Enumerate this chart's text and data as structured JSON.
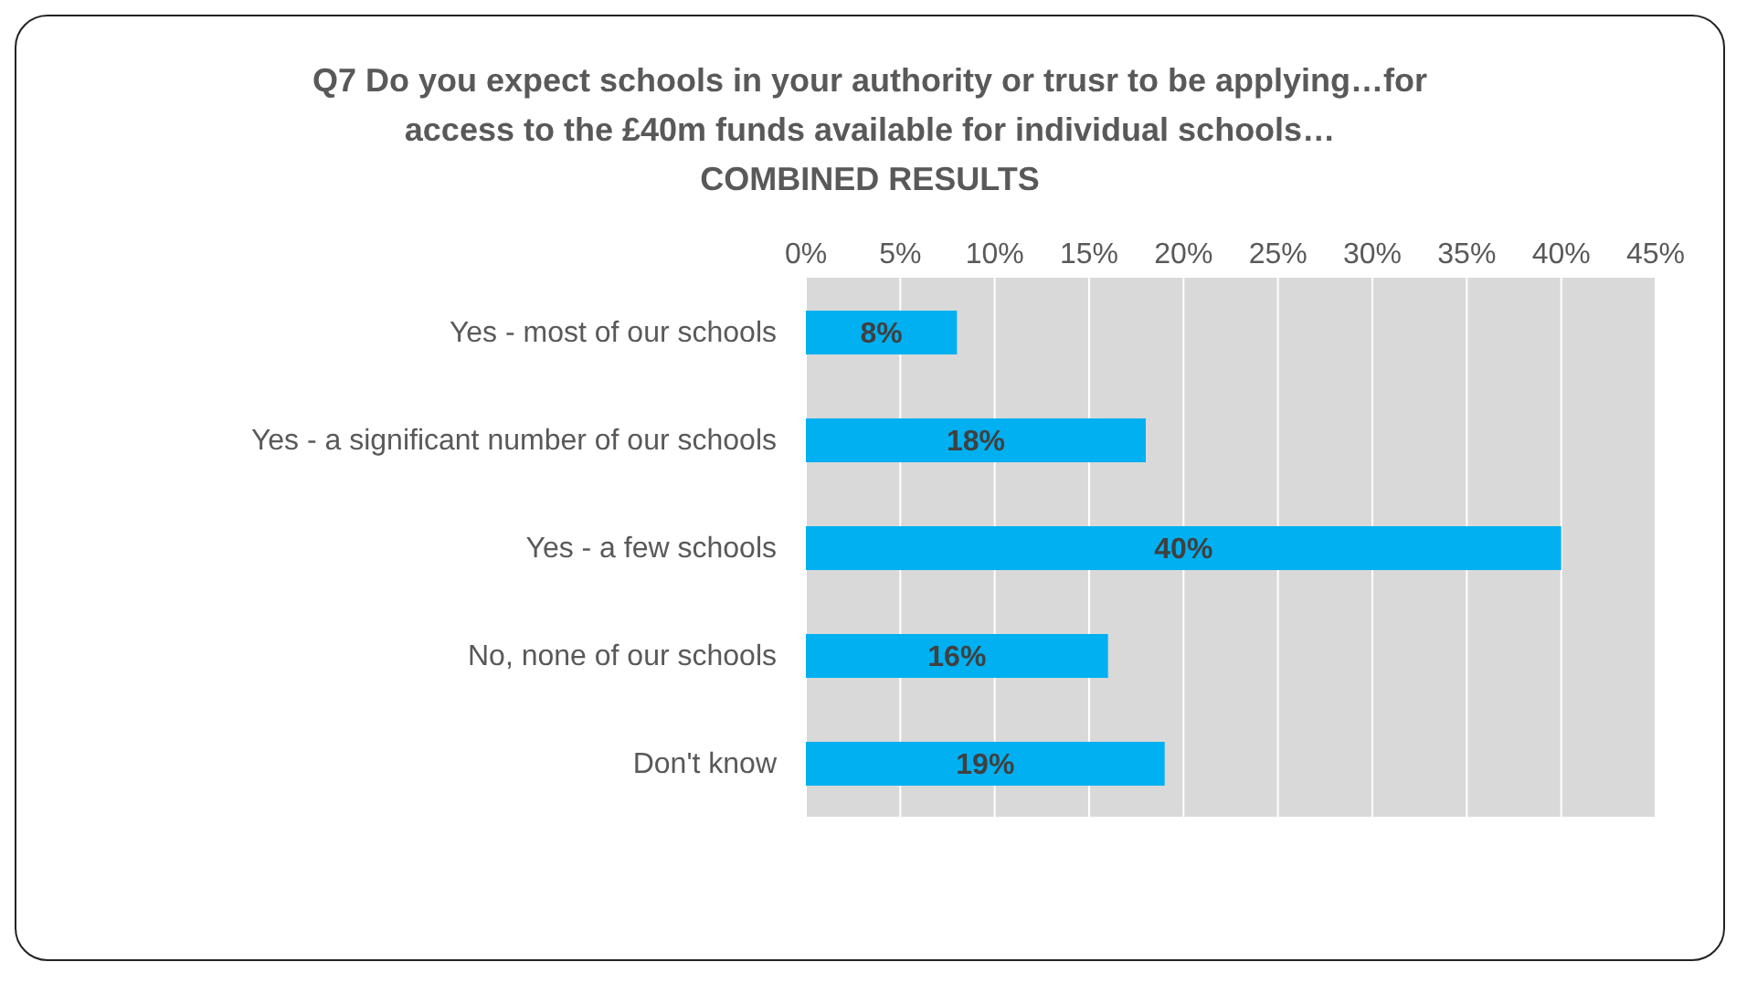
{
  "chart_data": {
    "type": "bar",
    "orientation": "horizontal",
    "title": "Q7 Do you expect schools in your authority or trusr to be applying…for access to the £40m funds available for individual schools…",
    "subtitle": "COMBINED RESULTS",
    "categories": [
      "Yes - most of our schools",
      "Yes - a significant number of our schools",
      "Yes - a few schools",
      "No, none of our schools",
      "Don't know"
    ],
    "values": [
      8,
      18,
      40,
      16,
      19
    ],
    "value_labels": [
      "8%",
      "18%",
      "40%",
      "16%",
      "19%"
    ],
    "color": "#00b0f0",
    "xlim": [
      0,
      45
    ],
    "xticks": [
      {
        "value": 0,
        "label": "0%"
      },
      {
        "value": 5,
        "label": "5%"
      },
      {
        "value": 10,
        "label": "10%"
      },
      {
        "value": 15,
        "label": "15%"
      },
      {
        "value": 20,
        "label": "20%"
      },
      {
        "value": 25,
        "label": "25%"
      },
      {
        "value": 30,
        "label": "30%"
      },
      {
        "value": 35,
        "label": "35%"
      },
      {
        "value": 40,
        "label": "40%"
      },
      {
        "value": 45,
        "label": "45%"
      }
    ],
    "grid": "x"
  }
}
